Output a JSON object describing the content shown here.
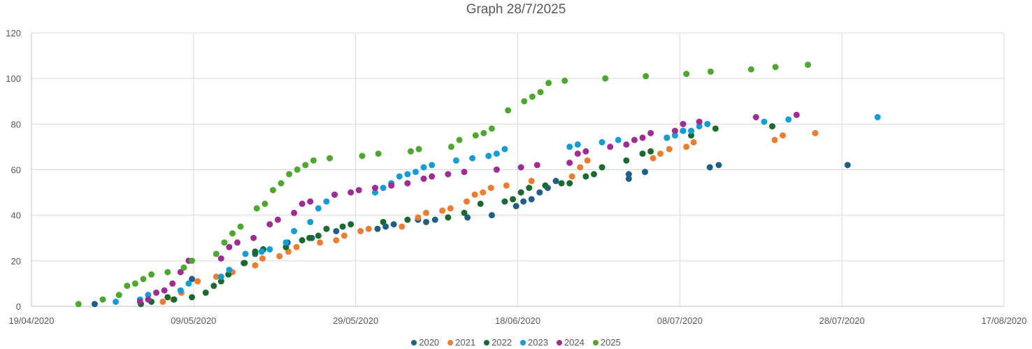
{
  "chart_data": {
    "type": "scatter",
    "title": "Graph 28/7/2025",
    "xlabel": "",
    "ylabel": "",
    "x_type": "date",
    "x_origin": "19/04/2020",
    "x_unit": "days since 19/04/2020",
    "xlim": [
      0,
      120
    ],
    "ylim": [
      0,
      120
    ],
    "x_ticks": [
      "19/04/2020",
      "09/05/2020",
      "29/05/2020",
      "18/06/2020",
      "08/07/2020",
      "28/07/2020",
      "17/08/2020"
    ],
    "y_ticks": [
      0,
      20,
      40,
      60,
      80,
      100,
      120
    ],
    "grid": true,
    "legend_position": "bottom",
    "series": [
      {
        "name": "2020",
        "color": "#1F5F87",
        "points": [
          [
            7.8,
            1
          ],
          [
            19.8,
            12
          ],
          [
            26.2,
            19
          ],
          [
            27.6,
            23
          ],
          [
            28.6,
            25
          ],
          [
            31.6,
            28
          ],
          [
            34.6,
            30
          ],
          [
            37.6,
            33
          ],
          [
            42.7,
            34
          ],
          [
            43.7,
            35
          ],
          [
            44.7,
            36
          ],
          [
            47.7,
            38
          ],
          [
            48.7,
            37
          ],
          [
            49.8,
            38
          ],
          [
            53.8,
            39
          ],
          [
            56.8,
            40
          ],
          [
            59.8,
            44
          ],
          [
            60.7,
            46
          ],
          [
            61.7,
            47
          ],
          [
            62.7,
            50
          ],
          [
            63.7,
            52
          ],
          [
            64.7,
            55
          ],
          [
            73.7,
            56
          ],
          [
            73.7,
            58
          ],
          [
            75.7,
            59
          ],
          [
            83.7,
            61
          ],
          [
            84.8,
            62
          ],
          [
            100.7,
            62
          ]
        ]
      },
      {
        "name": "2021",
        "color": "#ED7D31",
        "points": [
          [
            16.2,
            2
          ],
          [
            17.5,
            3
          ],
          [
            18.5,
            6
          ],
          [
            20.5,
            11
          ],
          [
            22.8,
            13
          ],
          [
            24.8,
            15
          ],
          [
            27.6,
            18
          ],
          [
            28.5,
            21
          ],
          [
            30.6,
            22
          ],
          [
            31.7,
            24
          ],
          [
            32.7,
            26
          ],
          [
            35.6,
            28
          ],
          [
            37.6,
            29
          ],
          [
            38.6,
            31
          ],
          [
            40.6,
            33
          ],
          [
            41.6,
            34
          ],
          [
            45.7,
            35
          ],
          [
            47.7,
            39
          ],
          [
            48.7,
            41
          ],
          [
            50.7,
            42
          ],
          [
            51.7,
            43
          ],
          [
            53.7,
            46
          ],
          [
            54.7,
            49
          ],
          [
            55.7,
            50
          ],
          [
            56.7,
            52
          ],
          [
            58.6,
            53
          ],
          [
            61.7,
            55
          ],
          [
            66.7,
            57
          ],
          [
            67.7,
            61
          ],
          [
            68.6,
            64
          ],
          [
            76.7,
            65
          ],
          [
            77.6,
            67
          ],
          [
            78.7,
            69
          ],
          [
            80.8,
            70
          ],
          [
            81.7,
            72
          ],
          [
            91.7,
            73
          ],
          [
            92.7,
            75
          ],
          [
            96.7,
            76
          ]
        ]
      },
      {
        "name": "2022",
        "color": "#1A6A2F",
        "points": [
          [
            13.5,
            1
          ],
          [
            14.8,
            2
          ],
          [
            16.8,
            4
          ],
          [
            17.6,
            3
          ],
          [
            19.8,
            4
          ],
          [
            21.5,
            6
          ],
          [
            22.5,
            9
          ],
          [
            23.4,
            11
          ],
          [
            24.3,
            14
          ],
          [
            26.3,
            19
          ],
          [
            27.6,
            24
          ],
          [
            28.6,
            25
          ],
          [
            31.4,
            26
          ],
          [
            33.4,
            29
          ],
          [
            34.3,
            30
          ],
          [
            35.4,
            31
          ],
          [
            36.4,
            34
          ],
          [
            38.4,
            35
          ],
          [
            39.4,
            36
          ],
          [
            43.4,
            37
          ],
          [
            46.4,
            38
          ],
          [
            51.4,
            39
          ],
          [
            53.4,
            41
          ],
          [
            55.4,
            45
          ],
          [
            58.4,
            46
          ],
          [
            59.4,
            47
          ],
          [
            60.4,
            50
          ],
          [
            61.4,
            52
          ],
          [
            63.4,
            53
          ],
          [
            65.4,
            54
          ],
          [
            66.4,
            54
          ],
          [
            68.4,
            57
          ],
          [
            69.4,
            58
          ],
          [
            70.4,
            61
          ],
          [
            73.4,
            64
          ],
          [
            75.4,
            67
          ],
          [
            76.4,
            68
          ],
          [
            78.4,
            74
          ],
          [
            80.4,
            77
          ],
          [
            81.4,
            75
          ],
          [
            84.4,
            78
          ],
          [
            91.4,
            79
          ]
        ]
      },
      {
        "name": "2023",
        "color": "#139DD7",
        "points": [
          [
            10.4,
            2
          ],
          [
            13.4,
            3
          ],
          [
            14.4,
            5
          ],
          [
            18.4,
            7
          ],
          [
            19.4,
            10
          ],
          [
            23.4,
            13
          ],
          [
            24.4,
            16
          ],
          [
            26.4,
            23
          ],
          [
            28.4,
            24
          ],
          [
            29.4,
            25
          ],
          [
            31.4,
            28
          ],
          [
            32.4,
            33
          ],
          [
            34.4,
            37
          ],
          [
            35.4,
            43
          ],
          [
            36.4,
            46
          ],
          [
            37.4,
            49
          ],
          [
            42.4,
            50
          ],
          [
            43.4,
            52
          ],
          [
            44.4,
            54
          ],
          [
            45.4,
            57
          ],
          [
            46.4,
            58
          ],
          [
            47.4,
            59
          ],
          [
            48.4,
            61
          ],
          [
            49.4,
            62
          ],
          [
            52.4,
            64
          ],
          [
            54.4,
            65
          ],
          [
            56.4,
            66
          ],
          [
            57.4,
            67
          ],
          [
            58.4,
            69
          ],
          [
            66.4,
            70
          ],
          [
            67.4,
            71
          ],
          [
            70.4,
            72
          ],
          [
            72.4,
            73
          ],
          [
            78.4,
            74
          ],
          [
            79.4,
            75
          ],
          [
            80.4,
            77
          ],
          [
            81.4,
            77
          ],
          [
            82.4,
            79
          ],
          [
            83.4,
            80
          ],
          [
            90.4,
            81
          ],
          [
            93.4,
            82
          ],
          [
            104.4,
            83
          ]
        ]
      },
      {
        "name": "2024",
        "color": "#A02B93",
        "points": [
          [
            13.4,
            2
          ],
          [
            14.4,
            3
          ],
          [
            15.4,
            6
          ],
          [
            16.4,
            7
          ],
          [
            17.4,
            10
          ],
          [
            18.4,
            15
          ],
          [
            19.4,
            20
          ],
          [
            23.4,
            21
          ],
          [
            24.4,
            26
          ],
          [
            25.4,
            28
          ],
          [
            27.4,
            30
          ],
          [
            29.4,
            36
          ],
          [
            30.4,
            38
          ],
          [
            32.4,
            41
          ],
          [
            33.4,
            45
          ],
          [
            34.4,
            46
          ],
          [
            37.4,
            49
          ],
          [
            39.4,
            50
          ],
          [
            40.4,
            51
          ],
          [
            42.4,
            52
          ],
          [
            44.4,
            53
          ],
          [
            46.4,
            54
          ],
          [
            48.4,
            56
          ],
          [
            49.4,
            57
          ],
          [
            51.4,
            58
          ],
          [
            53.4,
            59
          ],
          [
            57.4,
            60
          ],
          [
            60.4,
            61
          ],
          [
            62.4,
            62
          ],
          [
            66.4,
            63
          ],
          [
            67.4,
            67
          ],
          [
            68.4,
            68
          ],
          [
            71.4,
            70
          ],
          [
            73.4,
            71
          ],
          [
            74.4,
            73
          ],
          [
            75.4,
            74
          ],
          [
            76.4,
            76
          ],
          [
            79.4,
            77
          ],
          [
            80.4,
            80
          ],
          [
            82.4,
            81
          ],
          [
            89.4,
            83
          ],
          [
            94.4,
            84
          ]
        ]
      },
      {
        "name": "2025",
        "color": "#4EA72E",
        "points": [
          [
            5.8,
            1
          ],
          [
            8.8,
            3
          ],
          [
            10.8,
            5
          ],
          [
            11.8,
            9
          ],
          [
            12.8,
            10
          ],
          [
            13.8,
            12
          ],
          [
            14.8,
            14
          ],
          [
            16.8,
            15
          ],
          [
            18.8,
            17
          ],
          [
            19.8,
            20
          ],
          [
            22.8,
            23
          ],
          [
            23.8,
            28
          ],
          [
            24.8,
            32
          ],
          [
            25.8,
            35
          ],
          [
            27.8,
            43
          ],
          [
            28.8,
            45
          ],
          [
            29.8,
            51
          ],
          [
            30.8,
            54
          ],
          [
            31.8,
            58
          ],
          [
            32.8,
            60
          ],
          [
            33.8,
            62
          ],
          [
            34.8,
            64
          ],
          [
            36.8,
            65
          ],
          [
            40.8,
            66
          ],
          [
            42.8,
            67
          ],
          [
            46.8,
            68
          ],
          [
            47.8,
            69
          ],
          [
            51.8,
            70
          ],
          [
            52.8,
            73
          ],
          [
            54.8,
            75
          ],
          [
            55.8,
            76
          ],
          [
            56.8,
            78
          ],
          [
            58.8,
            86
          ],
          [
            60.8,
            90
          ],
          [
            61.8,
            92
          ],
          [
            62.8,
            94
          ],
          [
            63.8,
            98
          ],
          [
            65.8,
            99
          ],
          [
            70.8,
            100
          ],
          [
            75.8,
            101
          ],
          [
            80.8,
            102
          ],
          [
            83.8,
            103
          ],
          [
            88.8,
            104
          ],
          [
            91.8,
            105
          ],
          [
            95.8,
            106
          ]
        ]
      }
    ]
  }
}
